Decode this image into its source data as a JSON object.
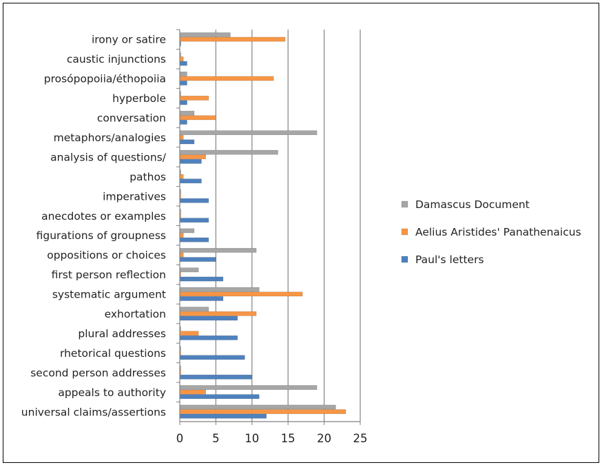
{
  "chart_data": {
    "type": "bar",
    "orientation": "horizontal",
    "categories": [
      "irony or satire",
      "caustic injunctions",
      "prosópopoiia/éthopoiia",
      "hyperbole",
      "conversation",
      "metaphors/analogies",
      "analysis of questions/",
      "pathos",
      "imperatives",
      "anecdotes or examples",
      "figurations of groupness",
      "oppositions or choices",
      "first person reflection",
      "systematic argument",
      "exhortation",
      "plural addresses",
      "rhetorical questions",
      "second person addresses",
      "appeals to authority",
      "universal claims/assertions"
    ],
    "series": [
      {
        "name": "Damascus Document",
        "color": "#a6a6a6",
        "values": [
          7,
          0,
          1,
          0,
          2,
          19,
          13.6,
          0,
          0,
          0,
          2,
          10.6,
          2.6,
          11,
          4,
          0,
          0,
          0,
          19,
          21.6
        ]
      },
      {
        "name": "Aelius Aristides' Panathenaicus",
        "color": "#f79646",
        "values": [
          14.6,
          0.5,
          13,
          4,
          5,
          0.5,
          3.6,
          0.5,
          0,
          0,
          0.5,
          0.5,
          0,
          17,
          10.6,
          2.6,
          0,
          0,
          3.6,
          23
        ]
      },
      {
        "name": "Paul's letters",
        "color": "#4f81bd",
        "values": [
          0,
          1,
          1,
          1,
          1,
          2,
          3,
          3,
          4,
          4,
          4,
          5,
          6,
          6,
          8,
          8,
          9,
          10,
          11,
          12
        ]
      }
    ],
    "xticks": [
      "0",
      "5",
      "10",
      "15",
      "20",
      "25"
    ],
    "xlim": [
      0,
      25
    ],
    "grid": "vertical",
    "legend_position": "right"
  }
}
